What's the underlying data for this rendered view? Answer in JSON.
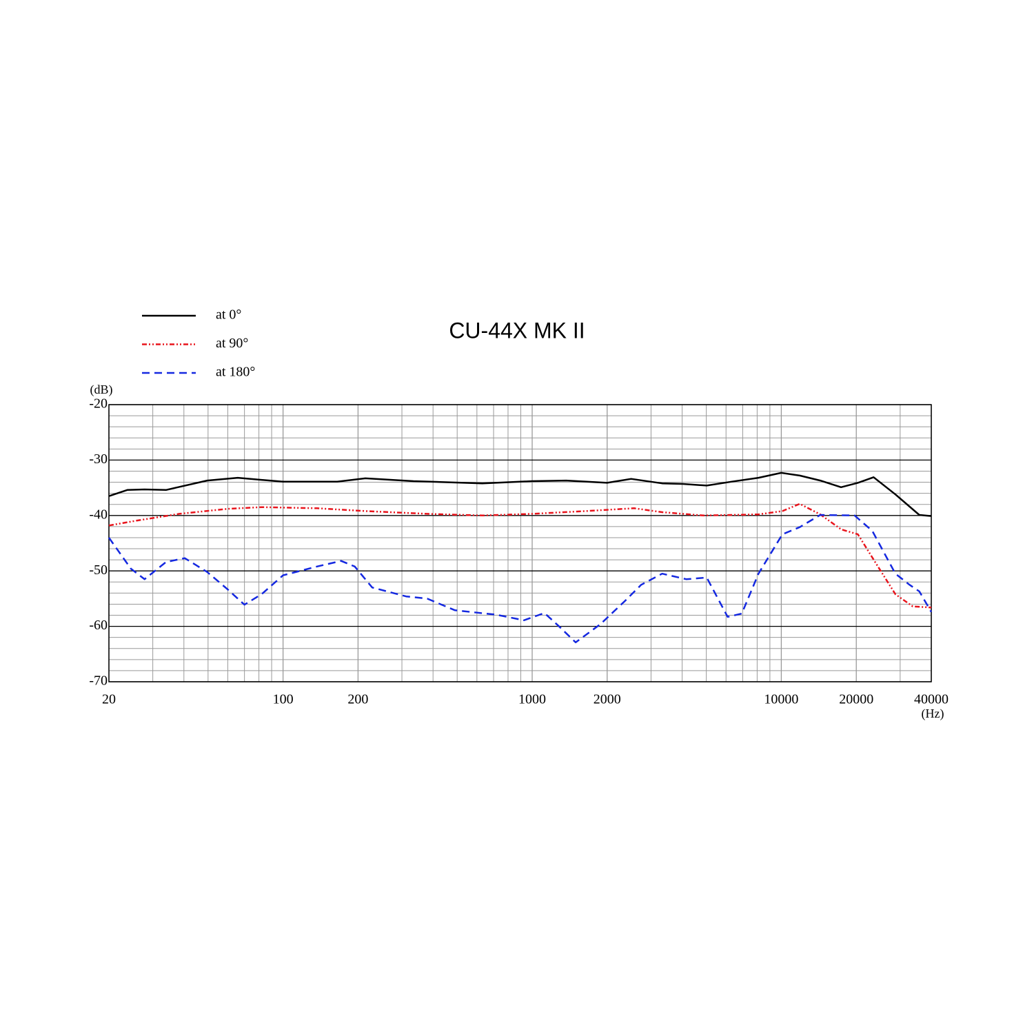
{
  "chart_data": {
    "type": "line",
    "title": "CU-44X MK II",
    "y_label": "(dB)",
    "x_label": "(Hz)",
    "x_scale": "log",
    "xlim": [
      20,
      40000
    ],
    "ylim": [
      -70,
      -20
    ],
    "xticks": [
      20,
      100,
      200,
      1000,
      2000,
      10000,
      20000,
      40000
    ],
    "yticks": [
      -20,
      -30,
      -40,
      -50,
      -60,
      -70
    ],
    "x_minor_ticks": [
      30,
      40,
      50,
      60,
      70,
      80,
      90,
      300,
      400,
      500,
      600,
      700,
      800,
      900,
      3000,
      4000,
      5000,
      6000,
      7000,
      8000,
      9000,
      30000
    ],
    "y_minor_ticks": [
      -22,
      -24,
      -26,
      -28,
      -32,
      -34,
      -36,
      -38,
      -42,
      -44,
      -46,
      -48,
      -52,
      -54,
      -56,
      -58,
      -62,
      -64,
      -66,
      -68
    ],
    "grid": true,
    "legend": "top-left",
    "series": [
      {
        "name": "at 0°",
        "color": "#000000",
        "dash": "solid",
        "x": [
          20,
          23.7,
          27.8,
          33.9,
          49.6,
          65.8,
          100,
          165,
          214,
          334,
          631,
          1000,
          1369,
          2000,
          2497,
          3325,
          4020,
          5020,
          6300,
          8100,
          10000,
          11860,
          14330,
          17370,
          20300,
          23460,
          28700,
          35800,
          40000
        ],
        "values": [
          -36.5,
          -35.4,
          -35.3,
          -35.4,
          -33.7,
          -33.2,
          -33.9,
          -33.9,
          -33.3,
          -33.8,
          -34.2,
          -33.8,
          -33.7,
          -34.1,
          -33.4,
          -34.2,
          -34.3,
          -34.6,
          -33.9,
          -33.2,
          -32.3,
          -32.8,
          -33.7,
          -34.9,
          -34.1,
          -33.1,
          -36.2,
          -39.9,
          -40.1
        ]
      },
      {
        "name": "at 90°",
        "color": "#e8141c",
        "dash": "dash-dot-dot",
        "x": [
          20,
          26.1,
          38.3,
          59.8,
          82,
          137,
          214,
          379,
          631,
          1000,
          1643,
          2566,
          3325,
          4870,
          6300,
          8100,
          10100,
          11860,
          14330,
          17370,
          20300,
          23800,
          28700,
          33700,
          40000
        ],
        "values": [
          -41.8,
          -40.9,
          -39.7,
          -38.8,
          -38.5,
          -38.7,
          -39.2,
          -39.7,
          -40.0,
          -39.7,
          -39.2,
          -38.7,
          -39.4,
          -40.0,
          -39.9,
          -39.8,
          -39.2,
          -37.9,
          -39.8,
          -42.5,
          -43.4,
          -48.4,
          -54.2,
          -56.4,
          -56.6
        ]
      },
      {
        "name": "at 180°",
        "color": "#1428e0",
        "dash": "dashed",
        "x": [
          20,
          24.5,
          27.8,
          33.9,
          40.3,
          49.6,
          59.8,
          70,
          82,
          100,
          137,
          171,
          194,
          228,
          312,
          379,
          490,
          717,
          927,
          1120,
          1275,
          1495,
          1880,
          2360,
          2740,
          3325,
          4160,
          5020,
          6090,
          6940,
          8100,
          10100,
          11860,
          14330,
          19700,
          23200,
          28700,
          32700,
          35800,
          40000
        ],
        "values": [
          -44.0,
          -49.6,
          -51.5,
          -48.4,
          -47.7,
          -50.2,
          -53.3,
          -56.1,
          -54.2,
          -50.8,
          -49.2,
          -48.2,
          -49.2,
          -53.0,
          -54.6,
          -55.0,
          -57.1,
          -57.9,
          -58.9,
          -57.6,
          -59.9,
          -62.9,
          -59.6,
          -55.4,
          -52.5,
          -50.5,
          -51.5,
          -51.2,
          -58.3,
          -57.7,
          -50.5,
          -43.4,
          -42.1,
          -39.9,
          -40.0,
          -42.8,
          -50.5,
          -52.5,
          -53.7,
          -57.4
        ]
      }
    ]
  }
}
